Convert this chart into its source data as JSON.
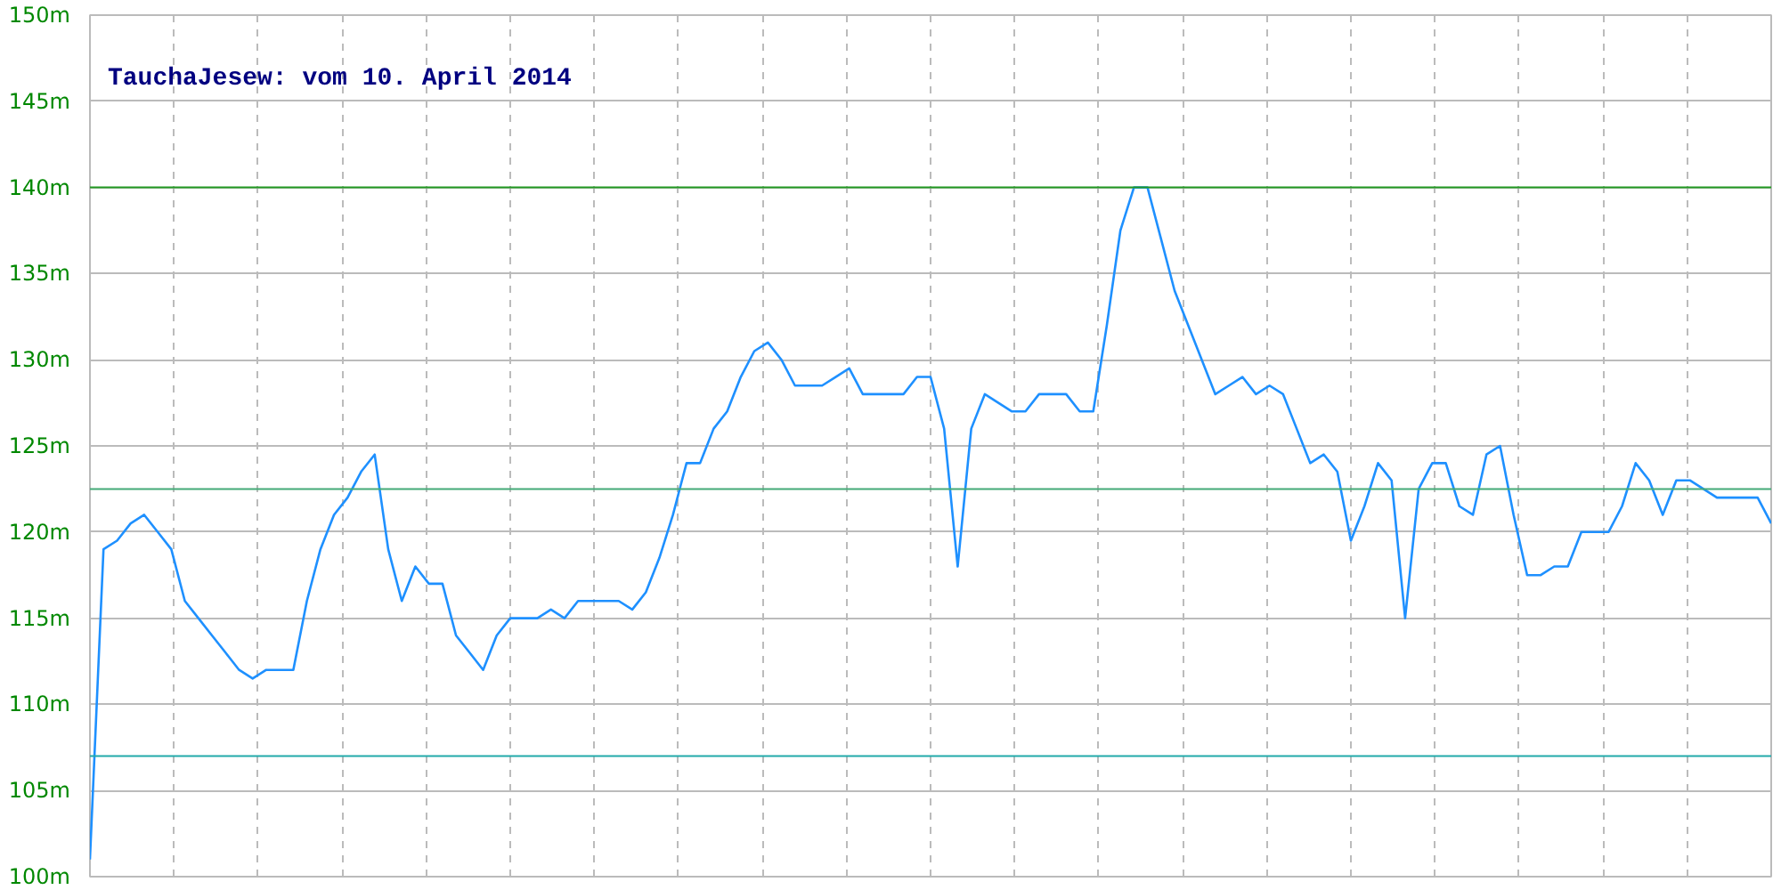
{
  "chart_data": {
    "type": "line",
    "title": "TauchaJesew: vom 10. April 2014",
    "categories": [
      null,
      null,
      null,
      null,
      null,
      null,
      null,
      null,
      null,
      null,
      null,
      null,
      null,
      null,
      null,
      null,
      null,
      null,
      null,
      null,
      null,
      null,
      null,
      null,
      null,
      null,
      null,
      null,
      null,
      null,
      null,
      null,
      null,
      null,
      null,
      null,
      null,
      null,
      null,
      null,
      null,
      null,
      null,
      null,
      null,
      null,
      null,
      null,
      null,
      null,
      null,
      null,
      null,
      null,
      null,
      null,
      null,
      null,
      null,
      null,
      null,
      null,
      null,
      null,
      null,
      null,
      null,
      null,
      null,
      null,
      null,
      null,
      null,
      null,
      null,
      null,
      null,
      null,
      null,
      null,
      null,
      null,
      null,
      null,
      null,
      null,
      null,
      null,
      null,
      null,
      null,
      null,
      null,
      null,
      null,
      null,
      null,
      null,
      null,
      null,
      null,
      null,
      null,
      null,
      null,
      null,
      null,
      null,
      null,
      null,
      null,
      null,
      null,
      null,
      null,
      null,
      null,
      null,
      null,
      null,
      null,
      null,
      null,
      null,
      null
    ],
    "series": [
      {
        "color": "#1e90ff",
        "values": [
          101,
          119,
          119.5,
          120.5,
          121,
          120,
          119,
          116,
          115,
          114,
          113,
          112,
          111.5,
          112,
          112,
          112,
          116,
          119,
          121,
          122,
          123.5,
          124.5,
          119,
          116,
          118,
          117,
          117,
          114,
          113,
          112,
          114,
          115,
          115,
          115,
          115.5,
          115,
          116,
          116,
          116,
          116,
          115.5,
          116.5,
          118.5,
          121,
          124,
          124,
          126,
          127,
          129,
          130.5,
          131,
          130,
          128.5,
          128.5,
          128.5,
          129,
          129.5,
          128,
          128,
          128,
          128,
          129,
          129,
          126,
          118,
          126,
          128,
          127.5,
          127,
          127,
          128,
          128,
          128,
          127,
          127,
          132,
          137.5,
          140,
          140,
          137,
          134,
          132,
          130,
          128,
          128.5,
          129,
          128,
          128.5,
          128,
          126,
          124,
          124.5,
          123.5,
          119.5,
          121.5,
          124,
          123,
          115,
          122.5,
          124,
          124,
          121.5,
          121,
          124.5,
          125,
          121,
          117.5,
          117.5,
          118,
          118,
          120,
          120,
          120,
          121.5,
          124,
          123,
          121,
          123,
          123,
          122.5,
          122,
          122,
          122,
          122,
          120.5
        ]
      }
    ],
    "ylim": [
      100,
      150
    ],
    "yticks": [
      {
        "value": 100,
        "label": "100m"
      },
      {
        "value": 105,
        "label": "105m"
      },
      {
        "value": 110,
        "label": "110m"
      },
      {
        "value": 115,
        "label": "115m"
      },
      {
        "value": 120,
        "label": "120m"
      },
      {
        "value": 125,
        "label": "125m"
      },
      {
        "value": 130,
        "label": "130m"
      },
      {
        "value": 135,
        "label": "135m"
      },
      {
        "value": 140,
        "label": "140m"
      },
      {
        "value": 145,
        "label": "145m"
      },
      {
        "value": 150,
        "label": "150m"
      }
    ],
    "tick_labels": "y",
    "grid": true,
    "ref_lines": [
      {
        "axis": "y",
        "value": 140,
        "color": "#229922"
      },
      {
        "axis": "y",
        "value": 122.5,
        "color": "#44aa77"
      },
      {
        "axis": "y",
        "value": 107,
        "color": "#22aaaa"
      }
    ]
  }
}
